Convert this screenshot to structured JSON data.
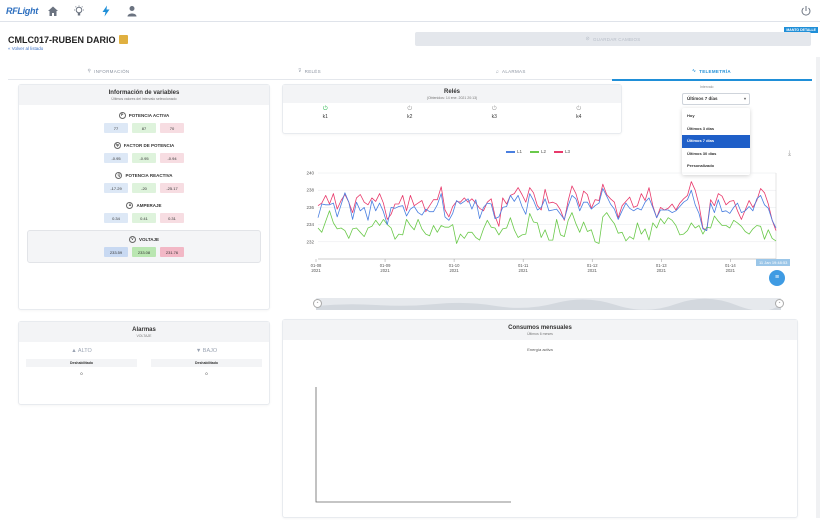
{
  "app": {
    "logo": "RFLight",
    "page_title": "CMLC017-RUBEN DARIO",
    "back_link": "« Volver al listado",
    "save_button": "GUARDAR CAMBIOS",
    "corner_badge": "MANTO DETALLE"
  },
  "tabs": [
    {
      "label": "INFORMACIÓN",
      "icon": "location-pin-icon"
    },
    {
      "label": "RELÉS",
      "icon": "filter-icon"
    },
    {
      "label": "ALARMAS",
      "icon": "bell-icon"
    },
    {
      "label": "TELEMETRÍA",
      "icon": "telemetry-icon",
      "active": true
    }
  ],
  "variables": {
    "title": "Información de variables",
    "subtitle": "Últimos valores del intervalo seleccionado",
    "groups": [
      {
        "label": "POTENCIA ACTIVA",
        "icon": "power-p-icon",
        "glyph": "P",
        "values": [
          "77",
          "87",
          "70"
        ]
      },
      {
        "label": "FACTOR DE POTENCIA",
        "icon": "power-factor-icon",
        "glyph": "fp",
        "values": [
          "-0.95",
          "-0.95",
          "-0.94"
        ]
      },
      {
        "label": "POTENCIA REACTIVA",
        "icon": "power-q-icon",
        "glyph": "Q",
        "values": [
          "-17.29",
          "-20",
          "-25.17"
        ]
      },
      {
        "label": "AMPERAJE",
        "icon": "ampere-icon",
        "glyph": "A",
        "values": [
          "0.34",
          "0.41",
          "0.31"
        ]
      }
    ],
    "voltage": {
      "label": "VOLTAJE",
      "icon": "voltage-icon",
      "glyph": "V",
      "values": [
        "233.59",
        "233.08",
        "231.76"
      ]
    }
  },
  "alarms": {
    "title": "Alarmas",
    "subtitle": "VOLTAJE",
    "high": {
      "label": "▲ ALTO",
      "sub": "Deshabilitado",
      "value": "0"
    },
    "low": {
      "label": "▼ BAJO",
      "sub": "Deshabilitado",
      "value": "0"
    }
  },
  "relays": {
    "title": "Relés",
    "subtitle": "(Obtenidos: 14 ene. 2021 20:13)",
    "items": [
      {
        "label": "k1",
        "on": true
      },
      {
        "label": "k2",
        "on": false
      },
      {
        "label": "k3",
        "on": false
      },
      {
        "label": "k4",
        "on": false
      }
    ]
  },
  "interval": {
    "label": "Intervalo",
    "selected": "Últimos 7 días",
    "options": [
      "Hoy",
      "Últimos 3 días",
      "Últimos 7 días",
      "Últimos 30 días",
      "Personalizado"
    ],
    "selected_index": 2
  },
  "telemetry": {
    "tooltip": "11 Jan 19:48:53",
    "legend": [
      "L1",
      "L2",
      "L3"
    ]
  },
  "monthly": {
    "title": "Consumos mensuales",
    "subtitle": "Últimos 6 meses",
    "label": "Energía activa"
  },
  "colors": {
    "accent": "#1f8fd8",
    "l1": "#e8396b",
    "l2": "#6ac94a",
    "l3": "#4a7fe0"
  },
  "chart_data": {
    "type": "line",
    "ylim": [
      230,
      240
    ],
    "yticks": [
      "240",
      "238",
      "236",
      "234",
      "232"
    ],
    "xticks": [
      "01-08 2021",
      "01-09 2021",
      "01-10 2021",
      "01-11 2021",
      "01-12 2021",
      "01-13 2021",
      "01-14 2021"
    ],
    "series": [
      {
        "name": "L1",
        "values": [
          236.2,
          236.5,
          237.4,
          236.4,
          237.6,
          235.8,
          236.8,
          237.5,
          236.6,
          235.4,
          237.1,
          237.5,
          236.6,
          236.3,
          237.1,
          236.7,
          237.6,
          236.5,
          234.6,
          235.2,
          236.4,
          236.4,
          237.4,
          235.6,
          237.4,
          236.2,
          236.5,
          236.8,
          235.5,
          236.2,
          236.9,
          236.9,
          238.4,
          235.7,
          234.9,
          236.1,
          236.7,
          236.6,
          237.1,
          236.6,
          237.0,
          236.5,
          235.9,
          235.6,
          236.6,
          237.0,
          235.0,
          233.8,
          237.1,
          236.4,
          237.4,
          237.6,
          238.3,
          237.5,
          236.6,
          238.3,
          237.7,
          236.2,
          235.7,
          238.1,
          236.5,
          236.6,
          236.4,
          235.7,
          234.5,
          236.8,
          238.5,
          237.6,
          236.1,
          237.9,
          237.5,
          235.9,
          236.9,
          236.8,
          238.7,
          237.5,
          237.0,
          236.6,
          234.8,
          236.2,
          236.7,
          237.2,
          236.0,
          236.2,
          237.6,
          236.8,
          238.3,
          236.2,
          234.8,
          236.0,
          235.7,
          235.9,
          236.4,
          235.7,
          236.5,
          237.0,
          237.4,
          239.0,
          238.0,
          236.3,
          233.6,
          233.3,
          236.9,
          236.2,
          237.6,
          237.3,
          236.3,
          236.7,
          236.8,
          235.6,
          234.6,
          235.7,
          236.8,
          236.0,
          236.8,
          238.2,
          237.7,
          236.4,
          234.5,
          233.3
        ]
      },
      {
        "name": "L2",
        "values": [
          233.6,
          233.1,
          234.4,
          235.6,
          234.2,
          233.5,
          233.6,
          233.3,
          232.4,
          233.5,
          233.6,
          233.1,
          232.6,
          233.6,
          233.8,
          234.5,
          233.9,
          234.6,
          234.0,
          233.6,
          232.3,
          232.9,
          232.8,
          234.6,
          233.9,
          233.4,
          234.6,
          233.5,
          232.9,
          232.7,
          233.9,
          233.1,
          233.9,
          233.7,
          233.7,
          234.0,
          231.8,
          232.9,
          232.4,
          233.1,
          233.1,
          232.5,
          232.2,
          233.5,
          234.5,
          233.7,
          233.6,
          232.8,
          233.5,
          233.6,
          234.8,
          233.4,
          232.5,
          232.8,
          232.9,
          235.3,
          234.3,
          234.2,
          232.5,
          233.4,
          232.2,
          232.2,
          234.6,
          232.8,
          232.6,
          234.5,
          235.4,
          234.1,
          233.1,
          234.3,
          233.2,
          233.4,
          232.0,
          231.8,
          234.9,
          235.4,
          234.7,
          234.1,
          233.0,
          233.1,
          232.1,
          232.6,
          232.3,
          234.2,
          232.9,
          233.5,
          232.2,
          234.2,
          233.6,
          234.7,
          234.1,
          234.8,
          234.5,
          233.9,
          232.8,
          232.9,
          233.3,
          234.2,
          233.6,
          233.9,
          232.9,
          233.7,
          233.6,
          235.0,
          234.4,
          233.9,
          233.9,
          233.6,
          234.5,
          234.2,
          233.8,
          233.2,
          232.9,
          233.5,
          233.9,
          233.8,
          232.3,
          233.4,
          232.4,
          232.1
        ]
      },
      {
        "name": "L3",
        "values": [
          234.8,
          236.4,
          236.3,
          236.3,
          236.5,
          234.9,
          236.3,
          237.7,
          236.6,
          234.6,
          236.6,
          235.6,
          236.0,
          234.5,
          236.8,
          235.6,
          236.5,
          235.5,
          234.0,
          236.0,
          235.9,
          236.1,
          236.2,
          235.0,
          235.8,
          236.1,
          235.4,
          235.1,
          235.8,
          235.5,
          235.5,
          236.3,
          237.6,
          234.9,
          234.5,
          235.3,
          236.8,
          236.4,
          236.7,
          237.0,
          235.8,
          236.9,
          234.7,
          236.0,
          236.5,
          236.4,
          234.7,
          234.9,
          236.0,
          236.1,
          237.4,
          236.7,
          237.4,
          236.1,
          235.2,
          237.6,
          236.8,
          235.7,
          236.0,
          237.0,
          235.6,
          235.7,
          235.8,
          235.2,
          234.6,
          236.2,
          237.4,
          237.0,
          235.6,
          236.6,
          236.6,
          235.8,
          236.2,
          236.5,
          238.2,
          237.3,
          236.4,
          235.8,
          234.6,
          235.6,
          236.5,
          235.9,
          235.6,
          235.9,
          235.7,
          236.6,
          237.1,
          236.0,
          234.8,
          235.7,
          235.7,
          235.7,
          235.4,
          235.6,
          236.1,
          236.6,
          236.9,
          238.0,
          236.3,
          235.3,
          233.5,
          233.3,
          236.5,
          235.4,
          236.9,
          235.5,
          235.6,
          235.3,
          236.0,
          236.5,
          235.4,
          235.6,
          236.1,
          235.6,
          237.0,
          237.4,
          236.3,
          235.9,
          234.5,
          233.6
        ]
      }
    ]
  }
}
